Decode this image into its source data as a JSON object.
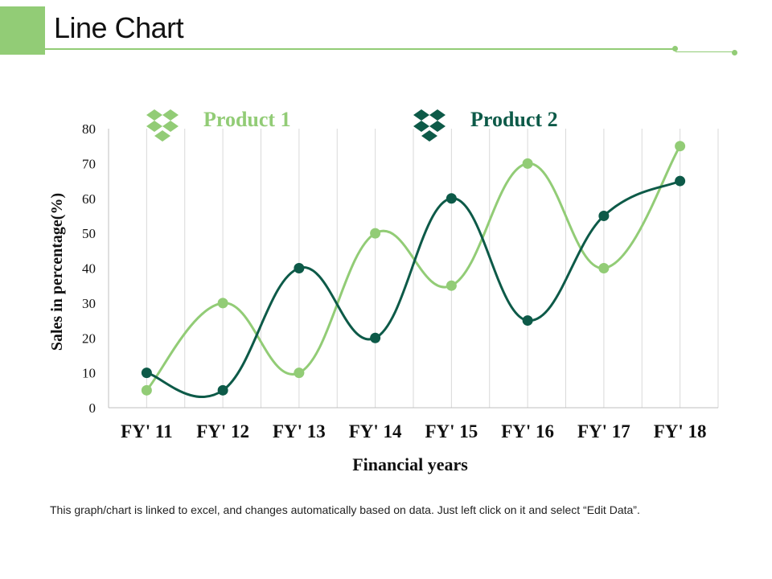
{
  "page": {
    "title": "Line Chart",
    "footer": "This graph/chart is linked to excel, and changes automatically based on data. Just left click on it and select “Edit Data”."
  },
  "colors": {
    "accent": "#92cc76",
    "product1": "#92cc76",
    "product2": "#0d5a48",
    "grid": "#d9d9d9",
    "text": "#111111"
  },
  "chart_data": {
    "type": "line",
    "title": "",
    "xlabel": "Financial years",
    "ylabel": "Sales in percentage(%)",
    "ylim": [
      0,
      80
    ],
    "yticks": [
      0,
      10,
      20,
      30,
      40,
      50,
      60,
      70,
      80
    ],
    "categories": [
      "FY' 11",
      "FY' 12",
      "FY' 13",
      "FY' 14",
      "FY' 15",
      "FY' 16",
      "FY' 17",
      "FY' 18"
    ],
    "legend_position": "top",
    "grid": true,
    "series": [
      {
        "name": "Product 1",
        "color": "#92cc76",
        "icon": "dropbox-icon",
        "values": [
          5,
          30,
          10,
          50,
          35,
          70,
          40,
          75
        ]
      },
      {
        "name": "Product 2",
        "color": "#0d5a48",
        "icon": "dropbox-icon",
        "values": [
          10,
          5,
          40,
          20,
          60,
          25,
          55,
          65
        ]
      }
    ]
  }
}
